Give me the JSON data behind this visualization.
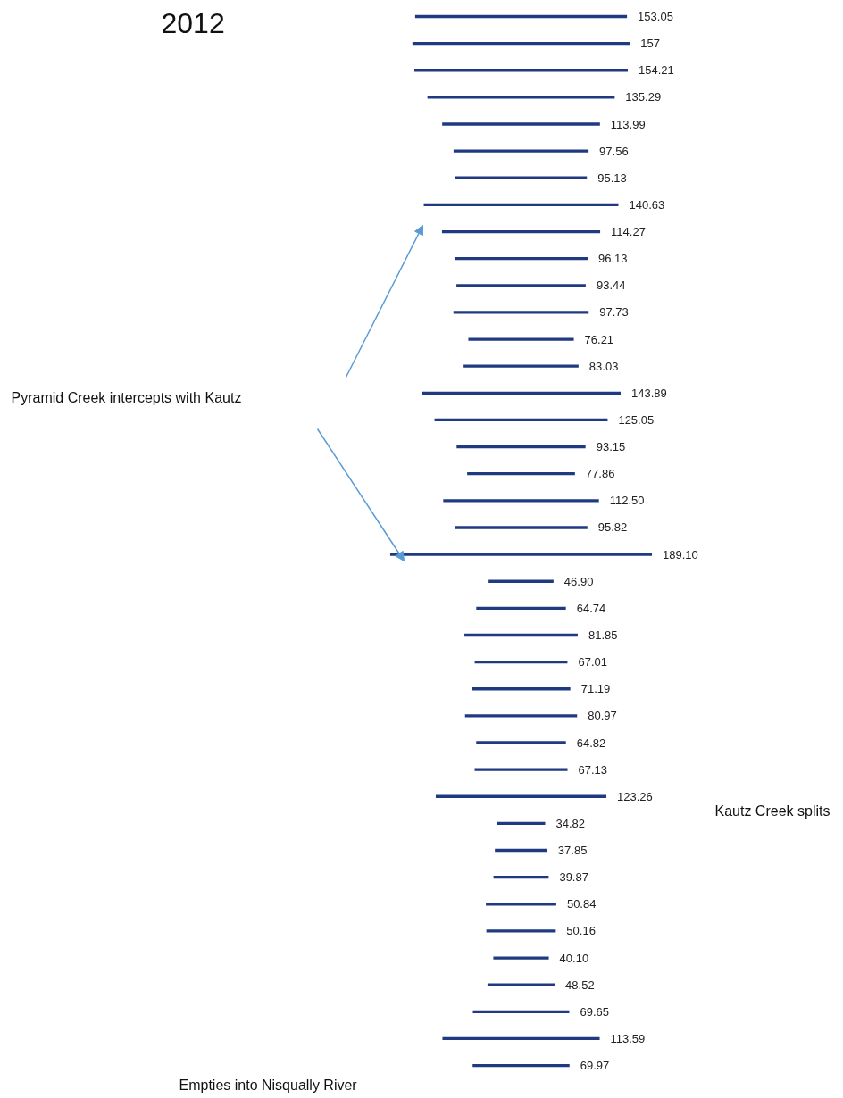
{
  "chart_data": {
    "type": "other",
    "title": "2012",
    "color": "#1f3a80",
    "categories": [
      null,
      null,
      null,
      null,
      null,
      null,
      null,
      null,
      null,
      null,
      null,
      null,
      null,
      null,
      null,
      null,
      null,
      null,
      null,
      null,
      null,
      null,
      null,
      null,
      null,
      null,
      null,
      null,
      null,
      null,
      null,
      null,
      null,
      null,
      null,
      null,
      null,
      null,
      null,
      null
    ],
    "values": [
      153.05,
      157,
      154.21,
      135.29,
      113.99,
      97.56,
      95.13,
      140.63,
      114.27,
      96.13,
      93.44,
      97.73,
      76.21,
      83.03,
      143.89,
      125.05,
      93.15,
      77.86,
      112.5,
      95.82,
      189.1,
      46.9,
      64.74,
      81.85,
      67.01,
      71.19,
      80.97,
      64.82,
      67.13,
      123.26,
      34.82,
      37.85,
      39.87,
      50.84,
      50.16,
      40.1,
      48.52,
      69.65,
      113.59,
      69.97
    ],
    "value_labels": [
      "153.05",
      "157",
      "154.21",
      "135.29",
      "113.99",
      "97.56",
      "95.13",
      "140.63",
      "114.27",
      "96.13",
      "93.44",
      "97.73",
      "76.21",
      "83.03",
      "143.89",
      "125.05",
      "93.15",
      "77.86",
      "112.50",
      "95.82",
      "189.10",
      "46.90",
      "64.74",
      "81.85",
      "67.01",
      "71.19",
      "80.97",
      "64.82",
      "67.13",
      "123.26",
      "34.82",
      "37.85",
      "39.87",
      "50.84",
      "50.16",
      "40.10",
      "48.52",
      "69.65",
      "113.59",
      "69.97"
    ],
    "annotations": [
      "Pyramid Creek intercepts with Kautz",
      "Kautz Creek splits",
      "Empties into Nisqually River"
    ]
  }
}
